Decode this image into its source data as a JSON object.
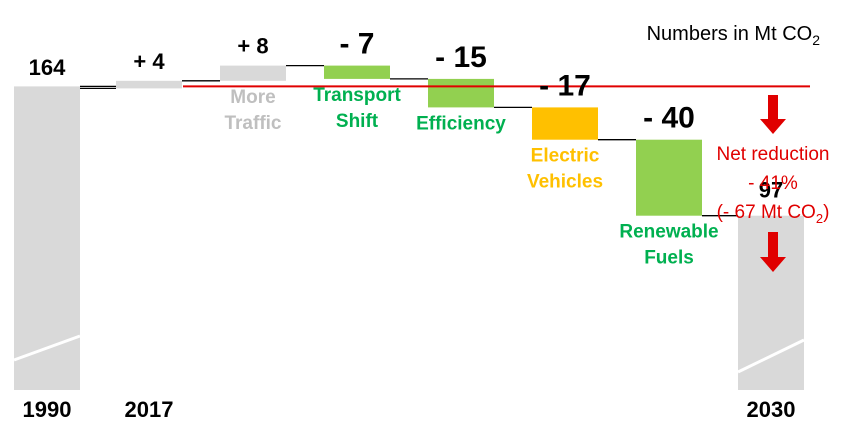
{
  "chart_data": {
    "type": "bar",
    "subtype": "waterfall",
    "units_note": {
      "prefix": "Numbers in Mt CO",
      "subscript": "2"
    },
    "start": {
      "label": "1990",
      "value": 164,
      "value_label": "164",
      "color": "#d9d9d9"
    },
    "steps": [
      {
        "category": "2017",
        "value": 4,
        "value_label": "+ 4",
        "label_lines": [],
        "color": "#d9d9d9",
        "label_color": "#bfbfbf"
      },
      {
        "category": "More Traffic",
        "value": 8,
        "value_label": "+ 8",
        "label_lines": [
          "More",
          "Traffic"
        ],
        "color": "#d9d9d9",
        "label_color": "#bfbfbf"
      },
      {
        "category": "Transport Shift",
        "value": -7,
        "value_label": "- 7",
        "label_lines": [
          "Transport",
          "Shift"
        ],
        "color": "#92d050",
        "label_color": "#00b050"
      },
      {
        "category": "Efficiency",
        "value": -15,
        "value_label": "- 15",
        "label_lines": [
          "Efficiency"
        ],
        "color": "#92d050",
        "label_color": "#00b050"
      },
      {
        "category": "Electric Vehicles",
        "value": -17,
        "value_label": "- 17",
        "label_lines": [
          "Electric",
          "Vehicles"
        ],
        "color": "#ffc000",
        "label_color": "#ffc000"
      },
      {
        "category": "Renewable Fuels",
        "value": -40,
        "value_label": "- 40",
        "label_lines": [
          "Renewable",
          "Fuels"
        ],
        "color": "#92d050",
        "label_color": "#00b050"
      }
    ],
    "end": {
      "label": "2030",
      "value": 97,
      "value_label": "97",
      "color": "#d9d9d9"
    },
    "reference_line": {
      "value": 164,
      "color": "#e00000"
    },
    "annotation": {
      "color": "#e00000",
      "line1": "Net reduction",
      "line2": "- 41%",
      "line3_prefix": "(- 67 Mt CO",
      "line3_sub": "2",
      "line3_suffix": ")"
    }
  }
}
